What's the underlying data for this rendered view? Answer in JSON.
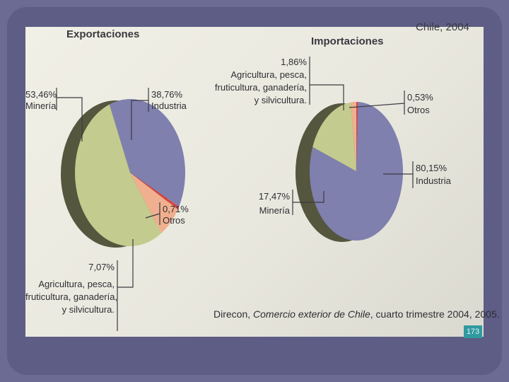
{
  "header_fragment": "Chile, 2004",
  "source": {
    "before": "Direcon, ",
    "italic": "Comercio exterior de Chile",
    "after": ", cuarto trimestre 2004, 2005."
  },
  "page_number": "173",
  "colors": {
    "Industria": "#7f80ae",
    "Minería": "#c4cb8e",
    "Agricultura": "#f0b090",
    "Otros": "#d9453f"
  },
  "chart_data": [
    {
      "type": "pie",
      "title": "Exportaciones",
      "slices": [
        {
          "label": "Industria",
          "value": 38.76,
          "pct_text": "38,76%",
          "name_text": "Industria"
        },
        {
          "label": "Otros",
          "value": 0.71,
          "pct_text": "0,71%",
          "name_text": "Otros"
        },
        {
          "label": "Agricultura",
          "value": 7.07,
          "pct_text": "7,07%",
          "name_lines": [
            "Agricultura, pesca,",
            "fruticultura, ganadería,",
            "y silvicultura."
          ]
        },
        {
          "label": "Minería",
          "value": 53.46,
          "pct_text": "53,46%",
          "name_text": "Minería"
        }
      ]
    },
    {
      "type": "pie",
      "title": "Importaciones",
      "slices": [
        {
          "label": "Otros",
          "value": 0.53,
          "pct_text": "0,53%",
          "name_text": "Otros"
        },
        {
          "label": "Industria",
          "value": 80.15,
          "pct_text": "80,15%",
          "name_text": "Industria"
        },
        {
          "label": "Minería",
          "value": 17.47,
          "pct_text": "17,47%",
          "name_text": "Minería"
        },
        {
          "label": "Agricultura",
          "value": 1.86,
          "pct_text": "1,86%",
          "name_lines": [
            "Agricultura, pesca,",
            "fruticultura, ganadería,",
            "y silvicultura."
          ]
        }
      ]
    }
  ]
}
